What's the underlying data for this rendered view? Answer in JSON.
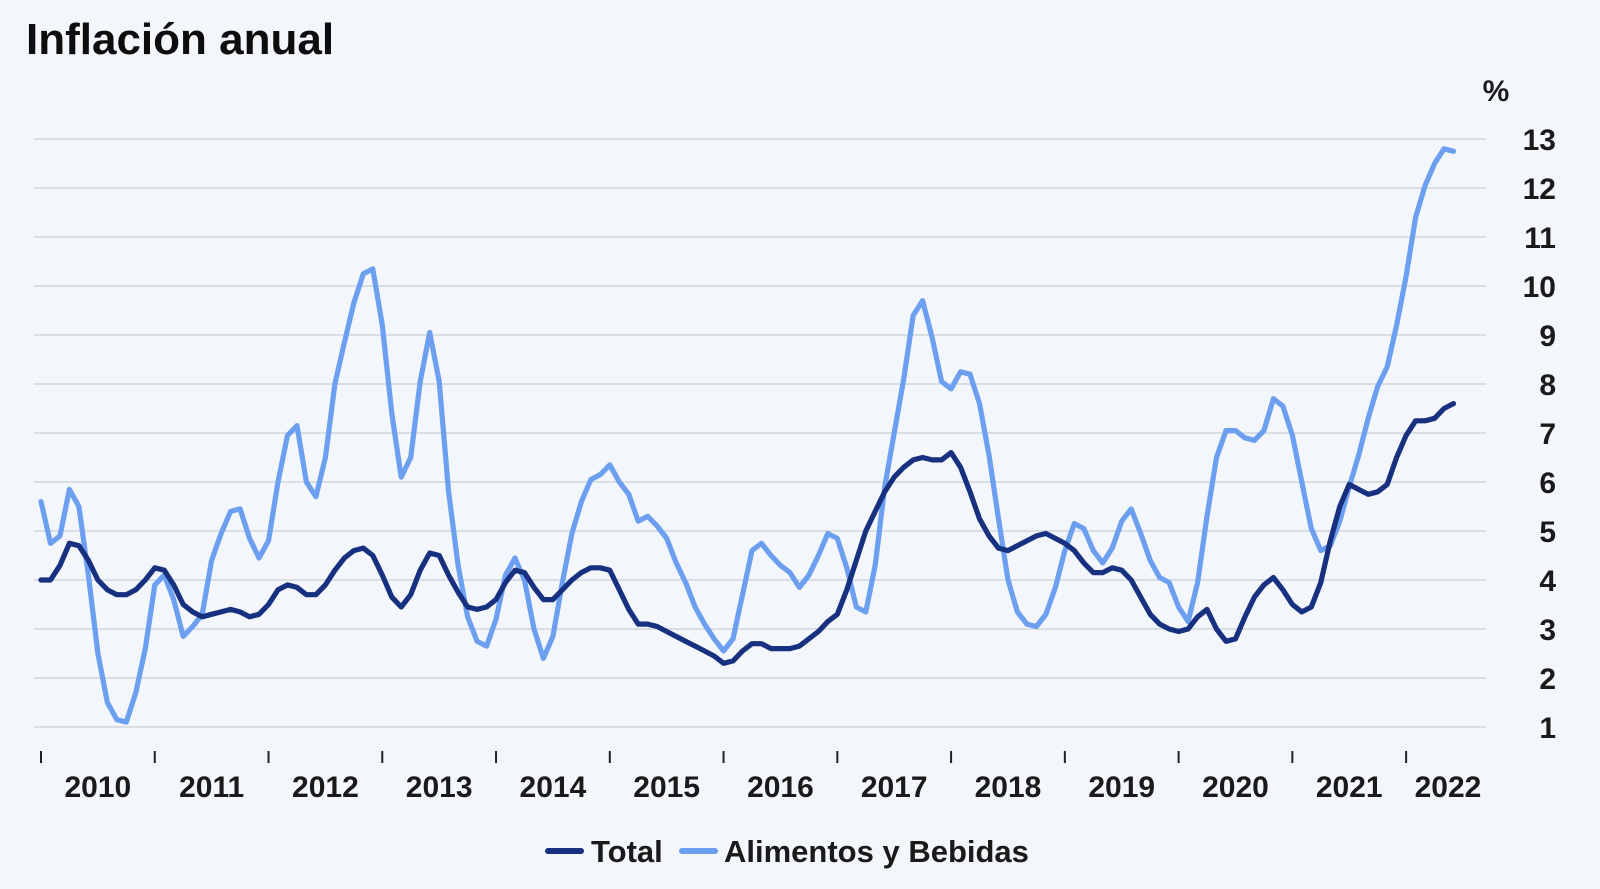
{
  "chart_data": {
    "type": "line",
    "title": "Inflación anual",
    "unit": "%",
    "xlabel": "",
    "ylabel": "",
    "ylim": [
      0.5,
      13.5
    ],
    "y_ticks": [
      1,
      2,
      3,
      4,
      5,
      6,
      7,
      8,
      9,
      10,
      11,
      12,
      13
    ],
    "x_start": "2010-01",
    "x_ticks": [
      "2010",
      "2011",
      "2012",
      "2013",
      "2014",
      "2015",
      "2016",
      "2017",
      "2018",
      "2019",
      "2020",
      "2021",
      "2022"
    ],
    "grid": true,
    "y_axis_side": "right",
    "legend_position": "bottom-center",
    "series": [
      {
        "name": "Total",
        "color": "#17307f",
        "values": [
          4.0,
          4.0,
          4.3,
          4.75,
          4.7,
          4.4,
          4.0,
          3.8,
          3.7,
          3.7,
          3.8,
          4.0,
          4.25,
          4.2,
          3.9,
          3.5,
          3.35,
          3.25,
          3.3,
          3.35,
          3.4,
          3.35,
          3.25,
          3.3,
          3.5,
          3.8,
          3.9,
          3.85,
          3.7,
          3.7,
          3.9,
          4.2,
          4.45,
          4.6,
          4.65,
          4.5,
          4.1,
          3.65,
          3.45,
          3.7,
          4.2,
          4.55,
          4.5,
          4.1,
          3.75,
          3.45,
          3.4,
          3.45,
          3.6,
          3.95,
          4.2,
          4.15,
          3.85,
          3.6,
          3.6,
          3.8,
          4.0,
          4.15,
          4.25,
          4.25,
          4.2,
          3.8,
          3.4,
          3.1,
          3.1,
          3.05,
          2.95,
          2.85,
          2.75,
          2.65,
          2.55,
          2.45,
          2.3,
          2.35,
          2.55,
          2.7,
          2.7,
          2.6,
          2.6,
          2.6,
          2.65,
          2.8,
          2.95,
          3.15,
          3.3,
          3.8,
          4.4,
          5.0,
          5.4,
          5.8,
          6.1,
          6.3,
          6.45,
          6.5,
          6.45,
          6.45,
          6.6,
          6.3,
          5.8,
          5.25,
          4.9,
          4.65,
          4.6,
          4.7,
          4.8,
          4.9,
          4.95,
          4.85,
          4.75,
          4.6,
          4.35,
          4.15,
          4.15,
          4.25,
          4.2,
          4.0,
          3.65,
          3.3,
          3.1,
          3.0,
          2.95,
          3.0,
          3.25,
          3.4,
          3.0,
          2.75,
          2.8,
          3.25,
          3.65,
          3.9,
          4.05,
          3.8,
          3.5,
          3.35,
          3.45,
          3.95,
          4.8,
          5.5,
          5.95,
          5.85,
          5.75,
          5.8,
          5.95,
          6.5,
          6.95,
          7.25,
          7.25,
          7.3,
          7.5,
          7.6
        ]
      },
      {
        "name": "Alimentos y Bebidas",
        "color": "#6c9ff0",
        "values": [
          5.6,
          4.75,
          4.9,
          5.85,
          5.5,
          4.1,
          2.5,
          1.5,
          1.15,
          1.1,
          1.7,
          2.6,
          3.9,
          4.1,
          3.6,
          2.85,
          3.05,
          3.3,
          4.4,
          4.95,
          5.4,
          5.45,
          4.85,
          4.45,
          4.8,
          6.0,
          6.95,
          7.15,
          6.0,
          5.7,
          6.5,
          8.0,
          8.85,
          9.65,
          10.25,
          10.35,
          9.2,
          7.4,
          6.1,
          6.5,
          8.05,
          9.05,
          8.05,
          5.8,
          4.3,
          3.25,
          2.75,
          2.65,
          3.2,
          4.1,
          4.45,
          4.0,
          3.0,
          2.4,
          2.85,
          3.95,
          4.95,
          5.6,
          6.05,
          6.15,
          6.35,
          6.0,
          5.75,
          5.2,
          5.3,
          5.1,
          4.85,
          4.35,
          3.95,
          3.45,
          3.1,
          2.8,
          2.55,
          2.8,
          3.7,
          4.6,
          4.75,
          4.5,
          4.3,
          4.15,
          3.85,
          4.1,
          4.5,
          4.95,
          4.85,
          4.25,
          3.45,
          3.35,
          4.3,
          5.9,
          7.0,
          8.1,
          9.4,
          9.7,
          8.95,
          8.05,
          7.9,
          8.25,
          8.2,
          7.6,
          6.55,
          5.25,
          4.0,
          3.35,
          3.1,
          3.05,
          3.3,
          3.85,
          4.6,
          5.15,
          5.05,
          4.6,
          4.35,
          4.65,
          5.2,
          5.45,
          4.95,
          4.4,
          4.05,
          3.95,
          3.45,
          3.15,
          3.95,
          5.3,
          6.5,
          7.05,
          7.05,
          6.9,
          6.85,
          7.05,
          7.7,
          7.55,
          6.95,
          6.0,
          5.05,
          4.6,
          4.7,
          5.2,
          5.9,
          6.55,
          7.3,
          7.95,
          8.35,
          9.2,
          10.2,
          11.4,
          12.05,
          12.5,
          12.8,
          12.75
        ]
      }
    ]
  }
}
